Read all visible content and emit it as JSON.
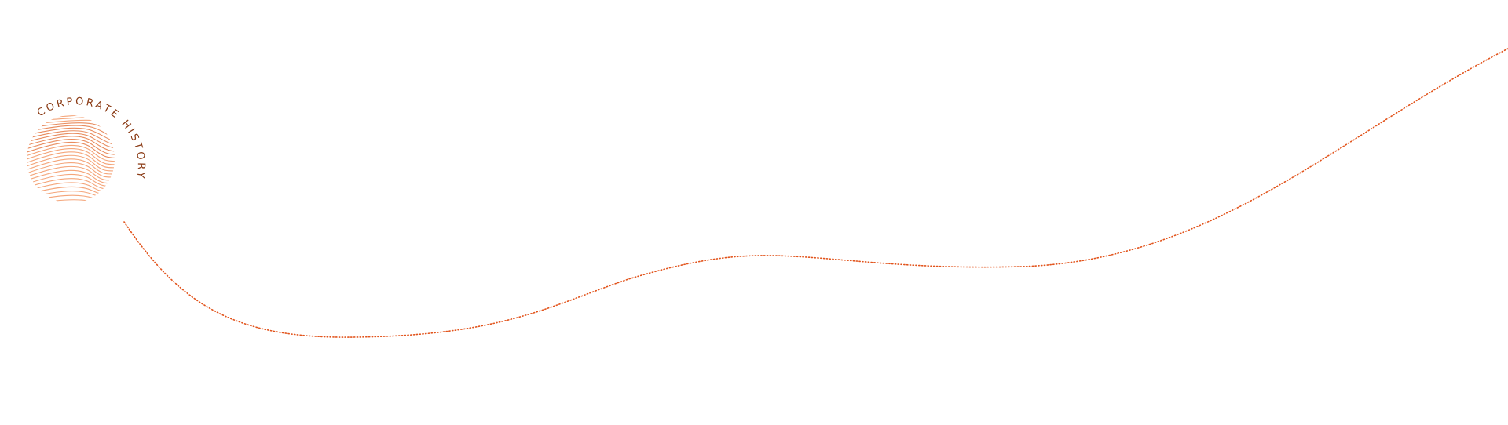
{
  "logo": {
    "text": "CORPORATE HISTORY",
    "text_color": "#8a3a14",
    "lines_color": "#f4a57a",
    "accent_color": "#e0662a"
  },
  "timeline": {
    "color": "#e2541c"
  }
}
